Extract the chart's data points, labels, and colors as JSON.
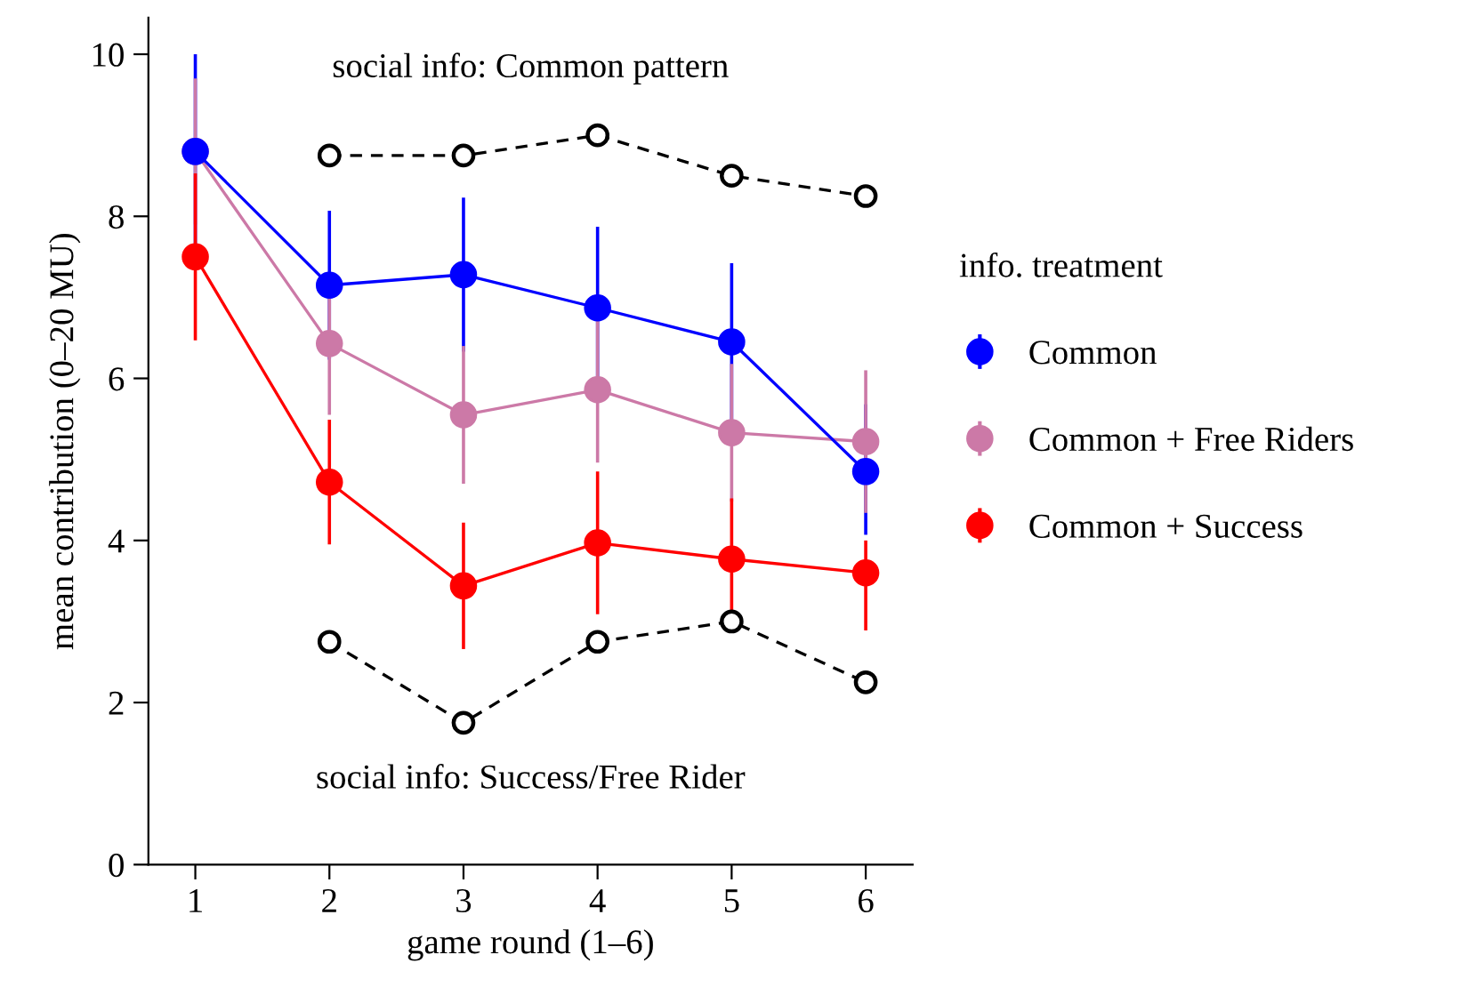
{
  "chart_data": {
    "type": "line",
    "xlabel": "game round (1–6)",
    "ylabel": "mean contribution (0–20 MU)",
    "legend_title": "info. treatment",
    "x": [
      1,
      2,
      3,
      4,
      5,
      6
    ],
    "series": [
      {
        "name": "Common",
        "color": "#0000ff",
        "values": [
          8.8,
          7.15,
          7.28,
          6.87,
          6.45,
          4.85
        ],
        "errors": [
          1.2,
          0.92,
          0.95,
          1.0,
          0.97,
          [
            4.07,
            5.68
          ]
        ],
        "marker": "circle"
      },
      {
        "name": "Common + Free Riders",
        "color": "#cc79a7",
        "values": [
          8.8,
          6.43,
          5.55,
          5.86,
          5.33,
          5.22
        ],
        "errors": [
          0.9,
          0.88,
          0.85,
          0.9,
          0.85,
          0.88
        ],
        "marker": "circle"
      },
      {
        "name": "Common + Success",
        "color": "#ff0000",
        "values": [
          7.5,
          4.72,
          3.44,
          3.97,
          3.77,
          3.6
        ],
        "errors": [
          1.03,
          0.77,
          0.78,
          0.88,
          0.75,
          [
            2.89,
            4.0
          ]
        ],
        "marker": "circle"
      },
      {
        "color": "#000000",
        "x": [
          2,
          3,
          4,
          5,
          6
        ],
        "values": [
          8.75,
          8.75,
          9.0,
          8.5,
          8.25
        ],
        "line_style": "dashed",
        "marker": "open circle"
      },
      {
        "color": "#000000",
        "x": [
          2,
          3,
          4,
          5,
          6
        ],
        "values": [
          2.75,
          1.75,
          2.75,
          3.0,
          2.25
        ],
        "line_style": "dashed",
        "marker": "open circle"
      }
    ],
    "annotations": [
      "social info: Common pattern",
      "social info: Success/Free Rider"
    ],
    "xlim": [
      0.65,
      6.35
    ],
    "ylim": [
      0,
      10.45
    ],
    "xticks": [
      1,
      2,
      3,
      4,
      5,
      6
    ],
    "yticks": [
      0,
      2,
      4,
      6,
      8,
      10
    ],
    "grid": false,
    "legend": "right"
  }
}
